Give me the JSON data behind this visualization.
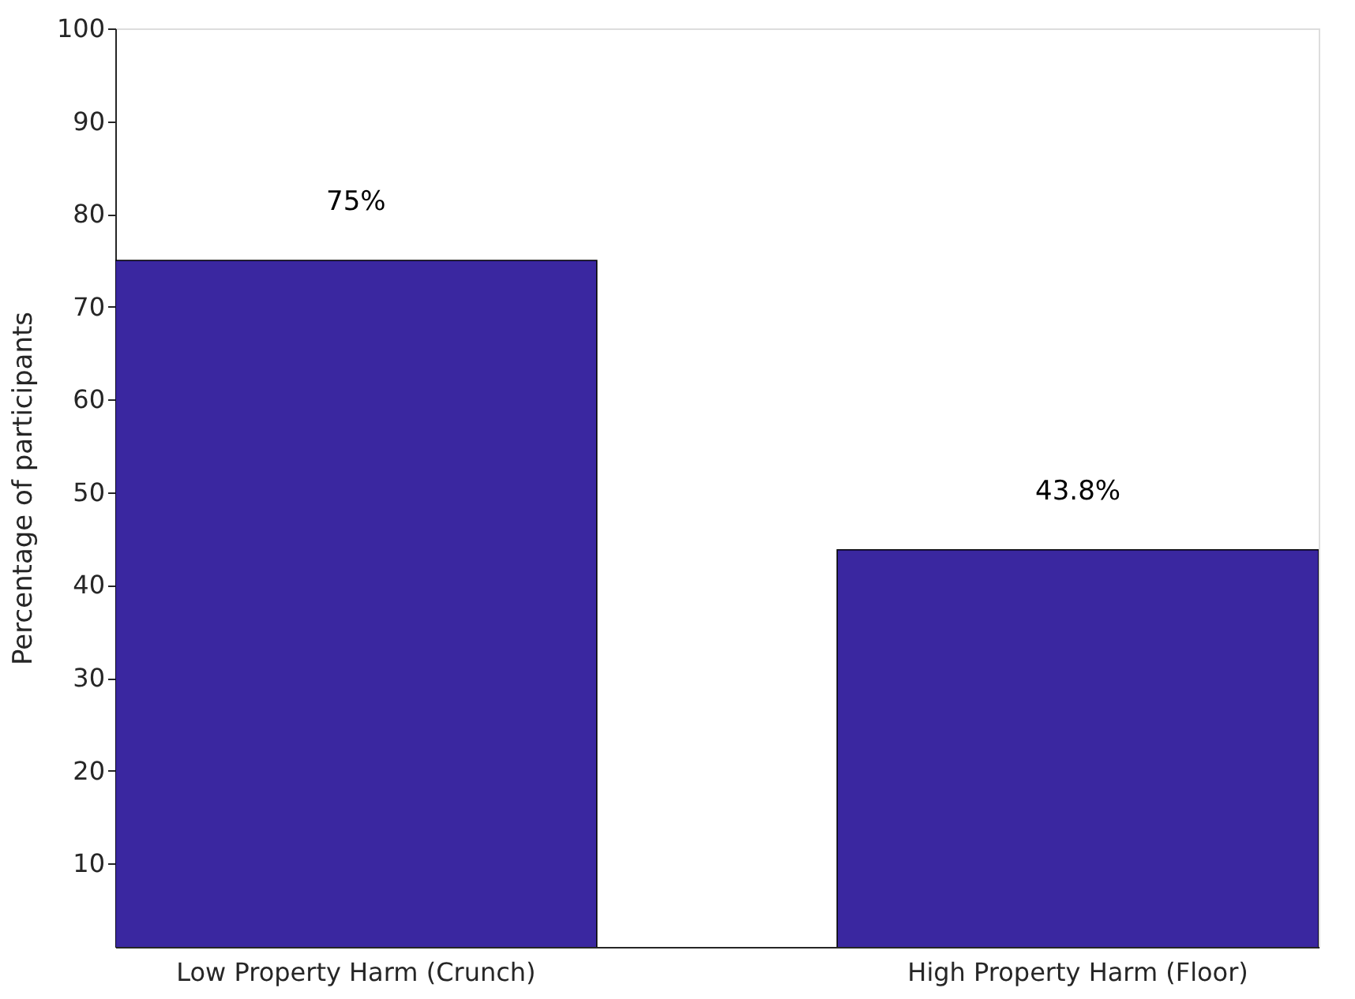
{
  "chart_data": {
    "type": "bar",
    "ylabel": "Percentage of participants",
    "categories": [
      "Low Property Harm (Crunch)",
      "High Property Harm (Floor)"
    ],
    "values": [
      75,
      43.8
    ],
    "value_labels": [
      "75%",
      "43.8%"
    ],
    "color": "#3a27a0",
    "ylim": [
      1,
      100
    ],
    "yticks": [
      10,
      20,
      30,
      40,
      50,
      60,
      70,
      80,
      90,
      100
    ],
    "grid": false
  }
}
